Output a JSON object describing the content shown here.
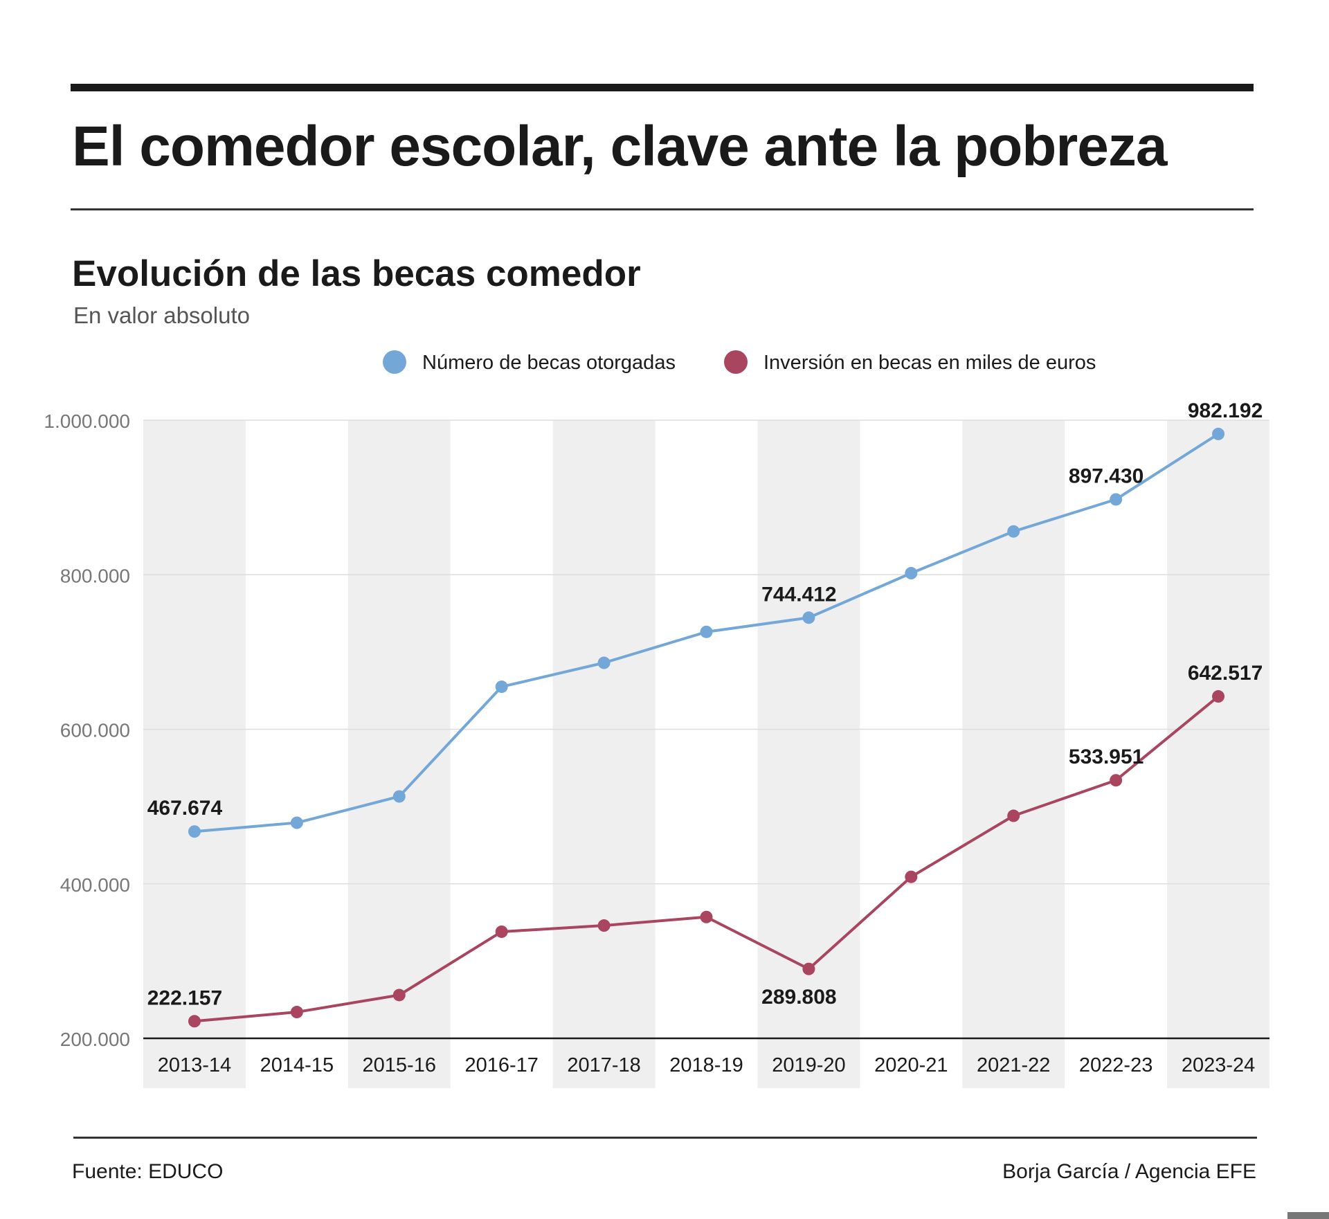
{
  "header": {
    "title": "El comedor escolar, clave ante la pobreza"
  },
  "footer": {
    "source": "Fuente: EDUCO",
    "credit": "Borja García / Agencia EFE"
  },
  "colors": {
    "becas": "#72a7d8",
    "inversion": "#a9455e",
    "band": "#efefef",
    "grid": "#dddddd",
    "text": "#1a1a1a",
    "axis_text": "#777777"
  },
  "chart_data": {
    "type": "line",
    "title": "Evolución de las becas comedor",
    "subtitle": "En valor absoluto",
    "categories": [
      "2013-14",
      "2014-15",
      "2015-16",
      "2016-17",
      "2017-18",
      "2018-19",
      "2019-20",
      "2020-21",
      "2021-22",
      "2022-23",
      "2023-24"
    ],
    "series": [
      {
        "name": "Número de becas otorgadas",
        "color": "#72a7d8",
        "values": [
          467674,
          479000,
          513000,
          655000,
          686000,
          726000,
          744412,
          802000,
          856000,
          897430,
          982192
        ]
      },
      {
        "name": "Inversión en becas en miles de euros",
        "color": "#a9455e",
        "values": [
          222157,
          234000,
          256000,
          338000,
          346000,
          357000,
          289808,
          409000,
          488000,
          533951,
          642517
        ]
      }
    ],
    "data_labels": [
      {
        "series": 0,
        "index": 0,
        "text": "467.674"
      },
      {
        "series": 0,
        "index": 6,
        "text": "744.412"
      },
      {
        "series": 0,
        "index": 9,
        "text": "897.430"
      },
      {
        "series": 0,
        "index": 10,
        "text": "982.192"
      },
      {
        "series": 1,
        "index": 0,
        "text": "222.157"
      },
      {
        "series": 1,
        "index": 6,
        "text": "289.808",
        "position": "below"
      },
      {
        "series": 1,
        "index": 9,
        "text": "533.951"
      },
      {
        "series": 1,
        "index": 10,
        "text": "642.517"
      }
    ],
    "y_ticks": [
      {
        "value": 200000,
        "label": "200.000"
      },
      {
        "value": 400000,
        "label": "400.000"
      },
      {
        "value": 600000,
        "label": "600.000"
      },
      {
        "value": 800000,
        "label": "800.000"
      },
      {
        "value": 1000000,
        "label": "1.000.000"
      }
    ],
    "ylim": [
      200000,
      1000000
    ],
    "grid": true,
    "legend_position": "top-center",
    "alternating_column_bands": true
  }
}
